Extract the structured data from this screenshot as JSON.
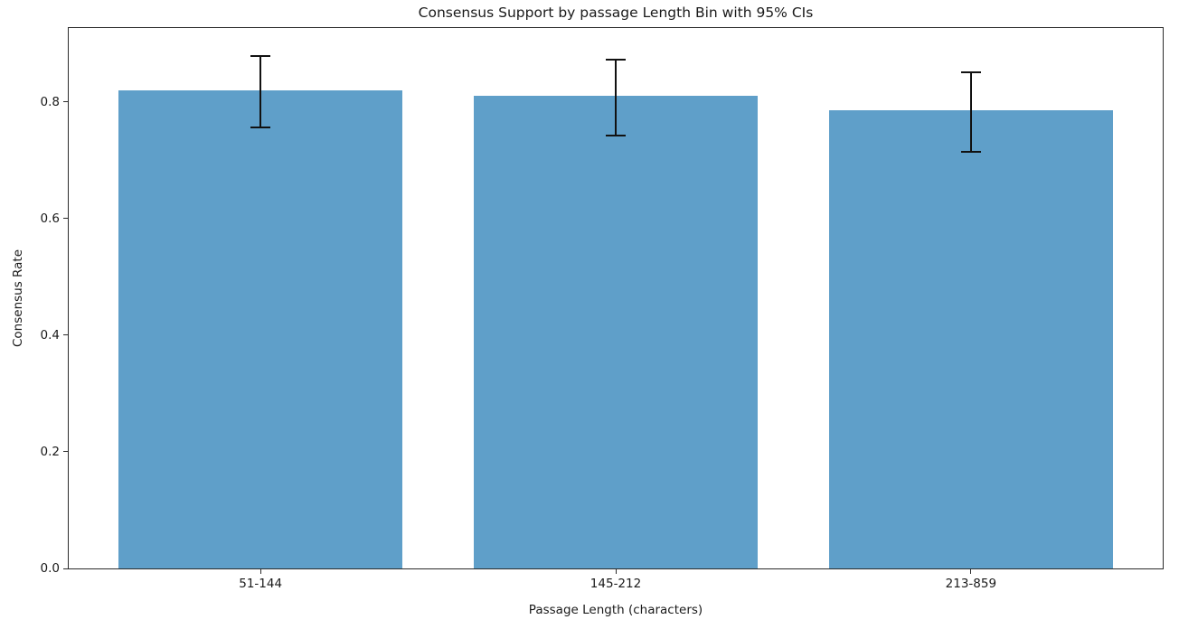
{
  "chart_data": {
    "type": "bar",
    "title": "Consensus Support by passage Length Bin with 95% CIs",
    "xlabel": "Passage Length (characters)",
    "ylabel": "Consensus Rate",
    "categories": [
      "51-144",
      "145-212",
      "213-859"
    ],
    "values": [
      0.82,
      0.81,
      0.786
    ],
    "error_low": [
      0.757,
      0.743,
      0.715
    ],
    "error_high": [
      0.879,
      0.873,
      0.851
    ],
    "ylim": [
      0,
      0.927
    ],
    "yticks": [
      0.0,
      0.2,
      0.4,
      0.6,
      0.8
    ],
    "ytick_labels": [
      "0.0",
      "0.2",
      "0.4",
      "0.6",
      "0.8"
    ],
    "bar_width_units": 0.8,
    "x_margin_units": 0.54,
    "grid": false,
    "legend_position": "none",
    "colors": {
      "bar": "#5f9fc9",
      "error_bar": "#111111",
      "spine": "#2b2b2b",
      "text": "#1a1a1a",
      "background": "#ffffff"
    }
  }
}
